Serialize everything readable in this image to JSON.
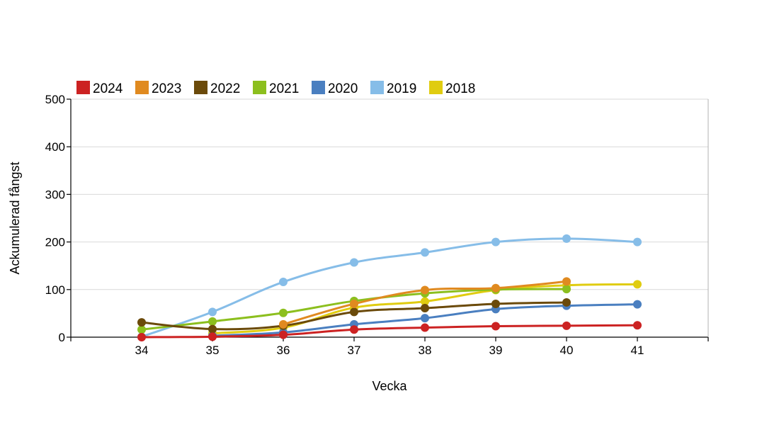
{
  "chart_data": {
    "type": "line",
    "xlabel": "Vecka",
    "ylabel": "Ackumulerad fångst",
    "x": [
      34,
      35,
      36,
      37,
      38,
      39,
      40,
      41
    ],
    "ylim": [
      0,
      500
    ],
    "yticks": [
      0,
      100,
      200,
      300,
      400,
      500
    ],
    "grid": true,
    "legend_position": "top-left",
    "series": [
      {
        "name": "2024",
        "color": "#cc2222",
        "values": [
          0,
          1,
          5,
          16,
          20,
          23,
          24,
          25
        ]
      },
      {
        "name": "2023",
        "color": "#e08a20",
        "values": [
          null,
          null,
          27,
          70,
          99,
          103,
          117,
          null
        ]
      },
      {
        "name": "2022",
        "color": "#6b4a0a",
        "values": [
          31,
          17,
          24,
          53,
          61,
          70,
          73,
          null
        ]
      },
      {
        "name": "2021",
        "color": "#8cbf1e",
        "values": [
          16,
          33,
          51,
          76,
          92,
          100,
          101,
          null
        ]
      },
      {
        "name": "2020",
        "color": "#4a7fc0",
        "values": [
          null,
          3,
          10,
          27,
          40,
          59,
          66,
          69
        ]
      },
      {
        "name": "2019",
        "color": "#86bde8",
        "values": [
          1,
          53,
          116,
          157,
          178,
          200,
          207,
          200
        ]
      },
      {
        "name": "2018",
        "color": "#e0cc10",
        "values": [
          null,
          8,
          20,
          62,
          75,
          99,
          109,
          111
        ]
      }
    ]
  }
}
